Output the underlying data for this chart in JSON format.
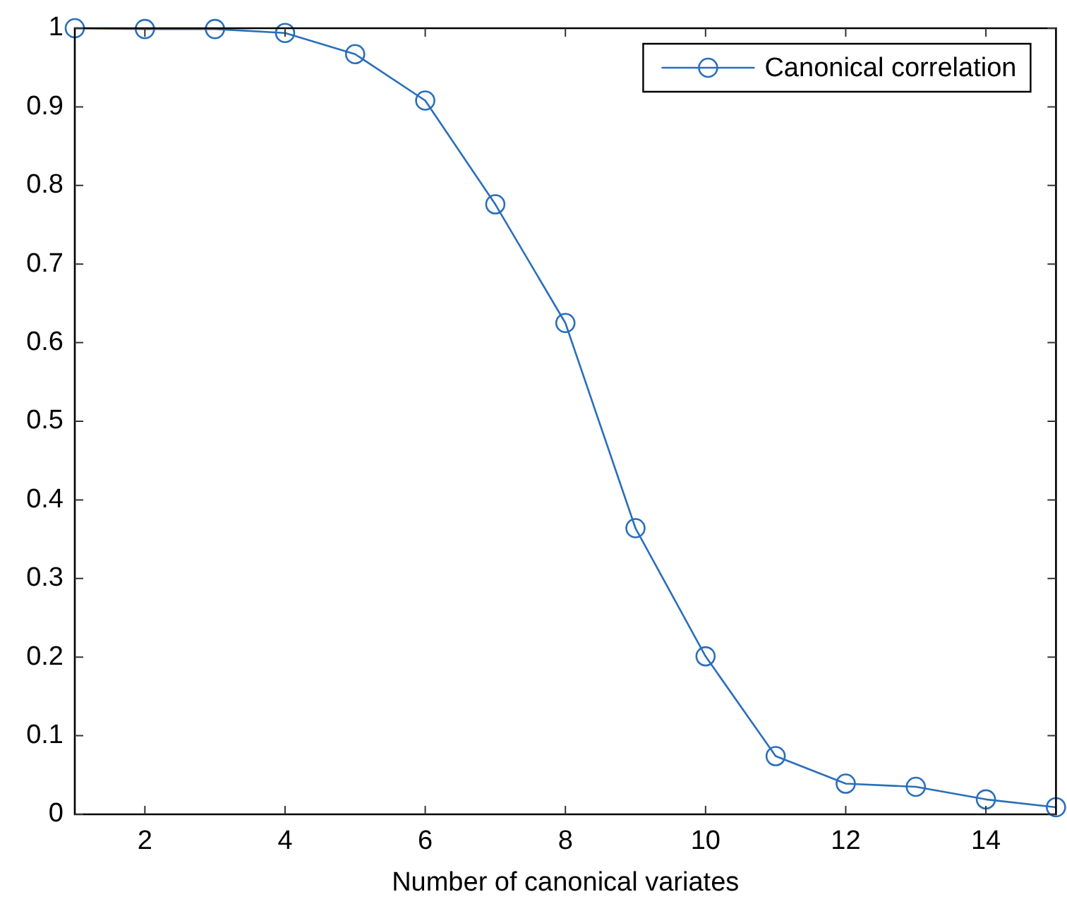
{
  "chart_data": {
    "type": "line",
    "xlabel": "Number of canonical variates",
    "x": [
      1,
      2,
      3,
      4,
      5,
      6,
      7,
      8,
      9,
      10,
      11,
      12,
      13,
      14,
      15
    ],
    "series": [
      {
        "name": "Canonical correlation",
        "color": "#2a6ebb",
        "values": [
          1,
          0.999,
          0.999,
          0.994,
          0.967,
          0.908,
          0.776,
          0.625,
          0.364,
          0.201,
          0.074,
          0.039,
          0.035,
          0.019,
          0.009
        ]
      }
    ],
    "xlim": [
      1,
      15
    ],
    "xticks": [
      2,
      4,
      6,
      8,
      10,
      12,
      14
    ],
    "ylim": [
      0,
      1
    ],
    "yticks": [
      0,
      0.1,
      0.2,
      0.3,
      0.4,
      0.5,
      0.6,
      0.7,
      0.8,
      0.9,
      1
    ],
    "grid": false,
    "legend": "top right",
    "marker": "circle",
    "line_style": "solid"
  }
}
